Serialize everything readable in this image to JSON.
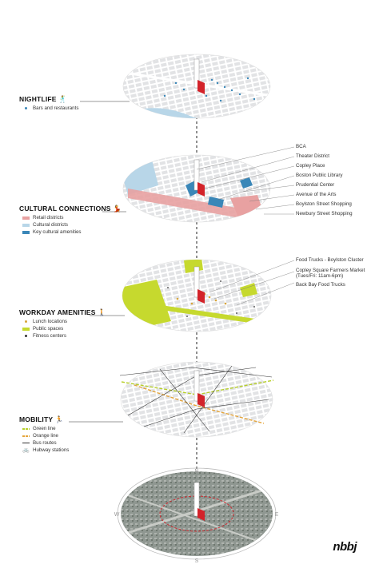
{
  "layers": [
    {
      "id": "nightlife",
      "title": "NIGHTLIFE",
      "icon": "dancing-figure-icon",
      "legend": [
        {
          "label": "Bars and restaurants",
          "color": "#3a87b8",
          "kind": "dot"
        }
      ],
      "callouts": []
    },
    {
      "id": "cultural",
      "title": "CULTURAL CONNECTIONS",
      "icon": "dancing-figure-icon",
      "legend": [
        {
          "label": "Retail districts",
          "color": "#e8a1a1",
          "kind": "swatch"
        },
        {
          "label": "Cultural districts",
          "color": "#b8d6e8",
          "kind": "swatch"
        },
        {
          "label": "Key cultural amenities",
          "color": "#3a87b8",
          "kind": "swatch"
        }
      ],
      "callouts": [
        "BCA",
        "Theater District",
        "Copley Place",
        "Boston Public Library",
        "Prudential Center",
        "Avenue of the Arts",
        "Boylston Street Shopping",
        "Newbury Street Shopping"
      ]
    },
    {
      "id": "workday",
      "title": "WORKDAY AMENITIES",
      "icon": "walking-figure-icon",
      "legend": [
        {
          "label": "Lunch locations",
          "color": "#d8a53a",
          "kind": "dot"
        },
        {
          "label": "Public spaces",
          "color": "#c6d92e",
          "kind": "swatch"
        },
        {
          "label": "Fitness centers",
          "color": "#333333",
          "kind": "dot"
        }
      ],
      "callouts": [
        "Food Trucks - Boylston Cluster",
        "Copley Square Farmers Market",
        "(Tues/Fri: 11am-6pm)",
        "Back Bay Food Trucks"
      ]
    },
    {
      "id": "mobility",
      "title": "MOBILITY",
      "icon": "running-figure-icon",
      "legend": [
        {
          "label": "Green line",
          "color": "#b7cf2a",
          "kind": "line"
        },
        {
          "label": "Orange line",
          "color": "#e4a43a",
          "kind": "line"
        },
        {
          "label": "Bus routes",
          "color": "#333333",
          "kind": "line"
        },
        {
          "label": "Hubway stations",
          "color": "#333333",
          "kind": "bike"
        }
      ],
      "callouts": []
    }
  ],
  "compass": [
    "N",
    "E",
    "S",
    "W"
  ],
  "brand": "nbbj",
  "colors": {
    "tower_red": "#d3232a",
    "block_gray": "#e2e3e5",
    "water": "#b8d6e8",
    "green": "#c6d92e"
  }
}
